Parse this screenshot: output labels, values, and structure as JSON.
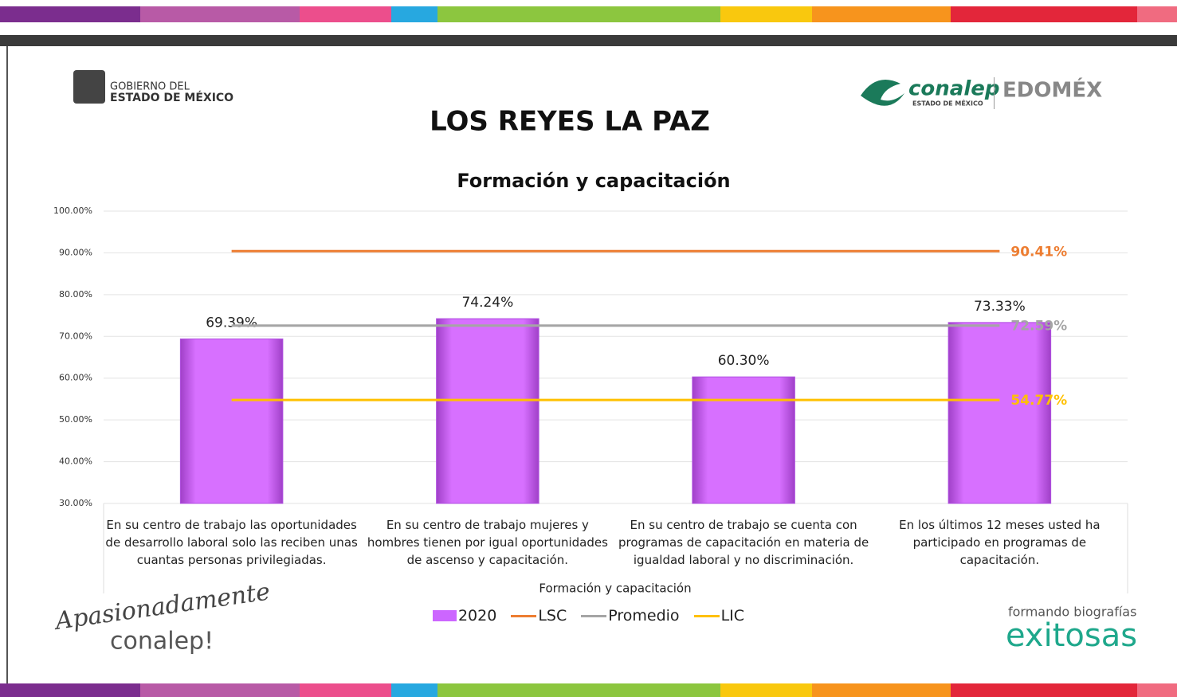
{
  "header": {
    "gov_line1": "GOBIERNO DEL",
    "gov_line2": "ESTADO DE MÉXICO",
    "conalep": "conalep",
    "conalep_sub": "ESTADO DE MÉXICO",
    "edomex": "EDOMÉX"
  },
  "page_title": "LOS REYES LA PAZ",
  "chart_data": {
    "type": "bar",
    "title": "Formación y capacitación",
    "x_label": "Formación y capacitación",
    "categories": [
      "En su centro de trabajo las oportunidades de desarrollo laboral solo las reciben unas cuantas personas privilegiadas.",
      "En su centro de trabajo mujeres y hombres tienen por igual oportunidades de ascenso y capacitación.",
      "En su centro de trabajo se cuenta con programas de capacitación en materia de igualdad laboral y no discriminación.",
      "En los últimos 12 meses usted ha participado en programas de capacitación."
    ],
    "series": [
      {
        "name": "2020",
        "type": "bar",
        "color": "#cc66ff",
        "values": [
          69.39,
          74.24,
          60.3,
          73.33
        ],
        "value_labels": [
          "69.39%",
          "74.24%",
          "60.30%",
          "73.33%"
        ]
      },
      {
        "name": "LSC",
        "type": "line",
        "color": "#ed7d31",
        "values": [
          90.41,
          90.41,
          90.41,
          90.41
        ],
        "value_labels": [
          null,
          null,
          null,
          "90.41%"
        ]
      },
      {
        "name": "Promedio",
        "type": "line",
        "color": "#a5a5a5",
        "values": [
          72.59,
          72.59,
          72.59,
          72.59
        ],
        "value_labels": [
          null,
          null,
          null,
          "72.59%"
        ]
      },
      {
        "name": "LIC",
        "type": "line",
        "color": "#ffc000",
        "values": [
          54.77,
          54.77,
          54.77,
          54.77
        ],
        "value_labels": [
          null,
          null,
          null,
          "54.77%"
        ]
      }
    ],
    "ylim": [
      30,
      100
    ],
    "yticks": [
      {
        "value": 30,
        "label": "30.00%"
      },
      {
        "value": 40,
        "label": "40.00%"
      },
      {
        "value": 50,
        "label": "50.00%"
      },
      {
        "value": 60,
        "label": "60.00%"
      },
      {
        "value": 70,
        "label": "70.00%"
      },
      {
        "value": 80,
        "label": "80.00%"
      },
      {
        "value": 90,
        "label": "90.00%"
      },
      {
        "value": 100,
        "label": "100.00%"
      }
    ],
    "grid": true,
    "legend": "bottom"
  },
  "footer": {
    "slogan1": "Apasionadamente",
    "slogan2": "conalep!",
    "brand1": "formando biografías",
    "brand2": "exitosas"
  }
}
